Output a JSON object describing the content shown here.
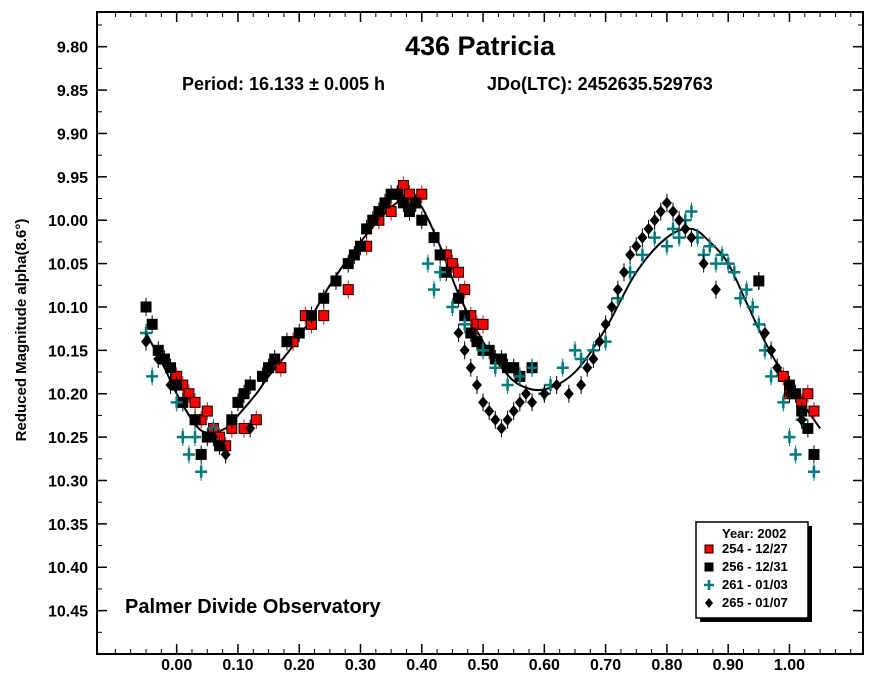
{
  "chart_data": {
    "type": "scatter",
    "title": "436 Patricia",
    "period_text": "Period: 16.133 ± 0.005 h",
    "epoch_text": "JDo(LTC): 2452635.529763",
    "xlabel": "",
    "ylabel": "Reduced Magnitude alpha(8.6°)",
    "xlim": [
      -0.13,
      1.12
    ],
    "ylim": [
      9.76,
      10.5
    ],
    "y_inverted": true,
    "grid": false,
    "x_ticks": [
      "0.00",
      "0.10",
      "0.20",
      "0.30",
      "0.40",
      "0.50",
      "0.60",
      "0.70",
      "0.80",
      "0.90",
      "1.00"
    ],
    "y_ticks": [
      "9.80",
      "9.85",
      "9.90",
      "9.95",
      "10.00",
      "10.05",
      "10.10",
      "10.15",
      "10.20",
      "10.25",
      "10.30",
      "10.35",
      "10.40",
      "10.45"
    ],
    "annotation": "Palmer Divide Observatory",
    "legend": {
      "title": "Year: 2002",
      "position": "bottom-right",
      "entries": [
        {
          "label": "254 - 12/27",
          "marker": "square",
          "color": "#ff0000"
        },
        {
          "label": "256 - 12/31",
          "marker": "square",
          "color": "#000000"
        },
        {
          "label": "261 - 01/03",
          "marker": "plus",
          "color": "#007a7a"
        },
        {
          "label": "265 - 01/07",
          "marker": "diamond",
          "color": "#000000"
        }
      ]
    },
    "fit_curve": {
      "x": [
        -0.05,
        -0.02,
        0.0,
        0.03,
        0.05,
        0.08,
        0.1,
        0.13,
        0.15,
        0.2,
        0.25,
        0.3,
        0.35,
        0.38,
        0.4,
        0.43,
        0.46,
        0.5,
        0.53,
        0.56,
        0.6,
        0.65,
        0.7,
        0.75,
        0.8,
        0.84,
        0.87,
        0.9,
        0.93,
        0.96,
        1.0,
        1.03,
        1.05
      ],
      "y": [
        10.13,
        10.17,
        10.2,
        10.235,
        10.245,
        10.24,
        10.225,
        10.2,
        10.18,
        10.135,
        10.075,
        10.025,
        9.985,
        9.975,
        9.985,
        10.03,
        10.085,
        10.14,
        10.17,
        10.19,
        10.195,
        10.175,
        10.125,
        10.06,
        10.02,
        10.01,
        10.025,
        10.05,
        10.095,
        10.14,
        10.19,
        10.22,
        10.24
      ]
    },
    "series": [
      {
        "name": "254 - 12/27",
        "marker": "square",
        "color": "#ff0000",
        "x": [
          0.0,
          0.01,
          0.02,
          0.03,
          0.04,
          0.05,
          0.06,
          0.07,
          0.08,
          0.09,
          0.11,
          0.13,
          0.17,
          0.19,
          0.21,
          0.22,
          0.24,
          0.28,
          0.31,
          0.33,
          0.35,
          0.36,
          0.37,
          0.38,
          0.39,
          0.4,
          0.44,
          0.45,
          0.46,
          0.47,
          0.48,
          0.49,
          0.5,
          0.99,
          1.0,
          1.02,
          1.03,
          1.04
        ],
        "y": [
          10.18,
          10.19,
          10.2,
          10.21,
          10.23,
          10.22,
          10.24,
          10.25,
          10.26,
          10.24,
          10.24,
          10.23,
          10.17,
          10.14,
          10.11,
          10.12,
          10.11,
          10.08,
          10.03,
          10.0,
          9.99,
          9.97,
          9.96,
          9.97,
          9.98,
          9.97,
          10.04,
          10.05,
          10.06,
          10.08,
          10.11,
          10.12,
          10.12,
          10.18,
          10.2,
          10.21,
          10.2,
          10.22
        ]
      },
      {
        "name": "256 - 12/31",
        "marker": "square",
        "color": "#000000",
        "x": [
          -0.05,
          -0.04,
          -0.03,
          -0.02,
          -0.01,
          0.0,
          0.01,
          0.03,
          0.04,
          0.05,
          0.07,
          0.09,
          0.1,
          0.11,
          0.12,
          0.14,
          0.15,
          0.16,
          0.18,
          0.2,
          0.22,
          0.24,
          0.26,
          0.28,
          0.29,
          0.3,
          0.31,
          0.32,
          0.33,
          0.34,
          0.35,
          0.36,
          0.37,
          0.38,
          0.39,
          0.4,
          0.42,
          0.43,
          0.44,
          0.46,
          0.47,
          0.48,
          0.49,
          0.5,
          0.51,
          0.52,
          0.53,
          0.54,
          0.55,
          0.56,
          0.58,
          0.95,
          1.0,
          1.01,
          1.02,
          1.03,
          1.04
        ],
        "y": [
          10.1,
          10.12,
          10.15,
          10.16,
          10.17,
          10.19,
          10.21,
          10.23,
          10.27,
          10.25,
          10.26,
          10.23,
          10.21,
          10.2,
          10.19,
          10.18,
          10.17,
          10.16,
          10.14,
          10.13,
          10.11,
          10.09,
          10.07,
          10.05,
          10.04,
          10.03,
          10.01,
          10.0,
          9.99,
          9.98,
          9.97,
          9.97,
          9.98,
          9.99,
          9.98,
          10.0,
          10.02,
          10.04,
          10.06,
          10.09,
          10.11,
          10.13,
          10.14,
          10.15,
          10.15,
          10.16,
          10.16,
          10.17,
          10.17,
          10.18,
          10.17,
          10.07,
          10.19,
          10.2,
          10.22,
          10.24,
          10.27
        ]
      },
      {
        "name": "261 - 01/03",
        "marker": "plus",
        "color": "#007a7a",
        "x": [
          -0.05,
          -0.04,
          0.0,
          0.01,
          0.02,
          0.03,
          0.04,
          0.06,
          0.41,
          0.42,
          0.43,
          0.45,
          0.47,
          0.5,
          0.52,
          0.54,
          0.56,
          0.58,
          0.6,
          0.61,
          0.63,
          0.65,
          0.66,
          0.68,
          0.7,
          0.72,
          0.74,
          0.76,
          0.78,
          0.8,
          0.81,
          0.82,
          0.83,
          0.84,
          0.85,
          0.86,
          0.87,
          0.88,
          0.89,
          0.9,
          0.91,
          0.92,
          0.93,
          0.94,
          0.95,
          0.96,
          0.97,
          0.99,
          1.0,
          1.01,
          1.02,
          1.04
        ],
        "y": [
          10.13,
          10.18,
          10.21,
          10.25,
          10.27,
          10.25,
          10.29,
          10.24,
          10.05,
          10.08,
          10.06,
          10.1,
          10.12,
          10.15,
          10.17,
          10.19,
          10.18,
          10.17,
          10.2,
          10.19,
          10.17,
          10.15,
          10.16,
          10.15,
          10.14,
          10.09,
          10.06,
          10.04,
          10.02,
          10.03,
          10.01,
          10.02,
          10.0,
          9.99,
          10.02,
          10.04,
          10.03,
          10.05,
          10.04,
          10.05,
          10.06,
          10.09,
          10.08,
          10.1,
          10.12,
          10.15,
          10.18,
          10.21,
          10.25,
          10.27,
          10.23,
          10.29
        ]
      },
      {
        "name": "265 - 01/07",
        "marker": "diamond",
        "color": "#000000",
        "x": [
          -0.05,
          -0.03,
          -0.01,
          0.06,
          0.08,
          0.12,
          0.46,
          0.47,
          0.48,
          0.49,
          0.5,
          0.51,
          0.52,
          0.53,
          0.54,
          0.55,
          0.56,
          0.57,
          0.58,
          0.6,
          0.62,
          0.64,
          0.66,
          0.67,
          0.68,
          0.69,
          0.7,
          0.71,
          0.72,
          0.73,
          0.74,
          0.75,
          0.76,
          0.77,
          0.78,
          0.79,
          0.8,
          0.81,
          0.82,
          0.83,
          0.84,
          0.86,
          0.88,
          0.95,
          0.96,
          0.97,
          0.98,
          1.0,
          1.02
        ],
        "y": [
          10.14,
          10.16,
          10.19,
          10.25,
          10.27,
          10.24,
          10.13,
          10.15,
          10.17,
          10.19,
          10.21,
          10.22,
          10.23,
          10.24,
          10.23,
          10.22,
          10.21,
          10.2,
          10.21,
          10.2,
          10.19,
          10.2,
          10.19,
          10.17,
          10.16,
          10.14,
          10.12,
          10.1,
          10.08,
          10.06,
          10.04,
          10.03,
          10.02,
          10.01,
          10.0,
          9.99,
          9.98,
          9.99,
          10.0,
          10.01,
          10.02,
          10.05,
          10.08,
          10.07,
          10.13,
          10.15,
          10.17,
          10.2,
          10.23
        ]
      }
    ]
  }
}
